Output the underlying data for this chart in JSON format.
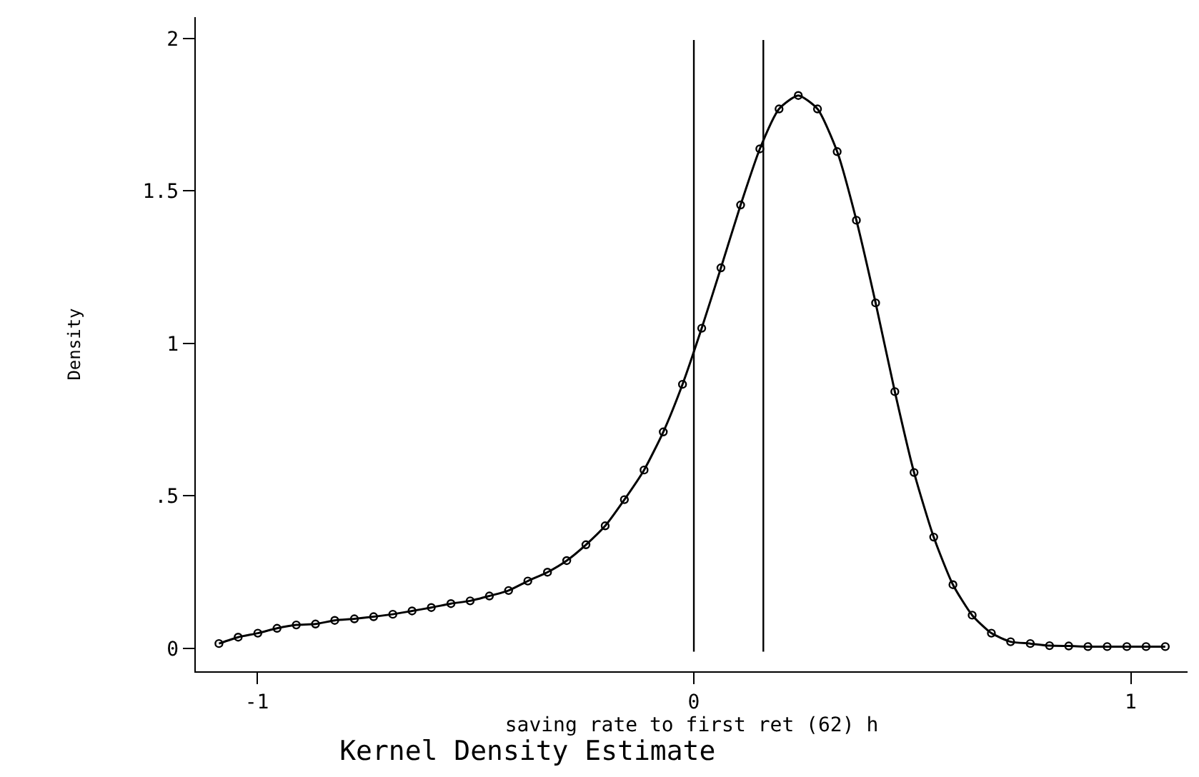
{
  "chart_data": {
    "type": "line",
    "title": "Kernel Density Estimate",
    "xlabel": "saving rate to first ret (62) h",
    "ylabel": "Density",
    "x": [
      -1.087,
      -1.043,
      -0.998,
      -0.954,
      -0.91,
      -0.866,
      -0.822,
      -0.777,
      -0.733,
      -0.689,
      -0.645,
      -0.601,
      -0.556,
      -0.512,
      -0.468,
      -0.424,
      -0.38,
      -0.335,
      -0.291,
      -0.247,
      -0.203,
      -0.159,
      -0.114,
      -0.07,
      -0.026,
      0.018,
      0.062,
      0.107,
      0.151,
      0.195,
      0.239,
      0.283,
      0.328,
      0.372,
      0.416,
      0.46,
      0.504,
      0.549,
      0.593,
      0.637,
      0.681,
      0.725,
      0.77,
      0.814,
      0.858,
      0.902,
      0.946,
      0.991,
      1.035,
      1.079
    ],
    "series": [
      {
        "color": "#000000",
        "values": [
          0.016,
          0.037,
          0.05,
          0.066,
          0.077,
          0.08,
          0.092,
          0.097,
          0.104,
          0.112,
          0.123,
          0.134,
          0.147,
          0.156,
          0.172,
          0.19,
          0.221,
          0.25,
          0.288,
          0.34,
          0.402,
          0.488,
          0.585,
          0.71,
          0.866,
          1.05,
          1.248,
          1.454,
          1.638,
          1.769,
          1.813,
          1.769,
          1.629,
          1.404,
          1.133,
          0.842,
          0.577,
          0.365,
          0.209,
          0.109,
          0.05,
          0.022,
          0.016,
          0.009,
          0.008,
          0.006,
          0.006,
          0.006,
          0.006,
          0.006
        ]
      }
    ],
    "marker": "circle",
    "line_style": "solid",
    "xlim": [
      -1.14,
      1.13
    ],
    "xticks": [
      -1,
      0,
      1
    ],
    "ylim": [
      -0.075,
      2.07
    ],
    "yticks": [
      0,
      {
        "value": 0.5,
        "label": ".5"
      },
      1,
      1.5,
      2
    ],
    "ref_lines": [
      {
        "axis": "x",
        "value": 0,
        "color": "#000000"
      },
      {
        "axis": "x",
        "value": 0.159,
        "color": "#000000"
      }
    ]
  }
}
